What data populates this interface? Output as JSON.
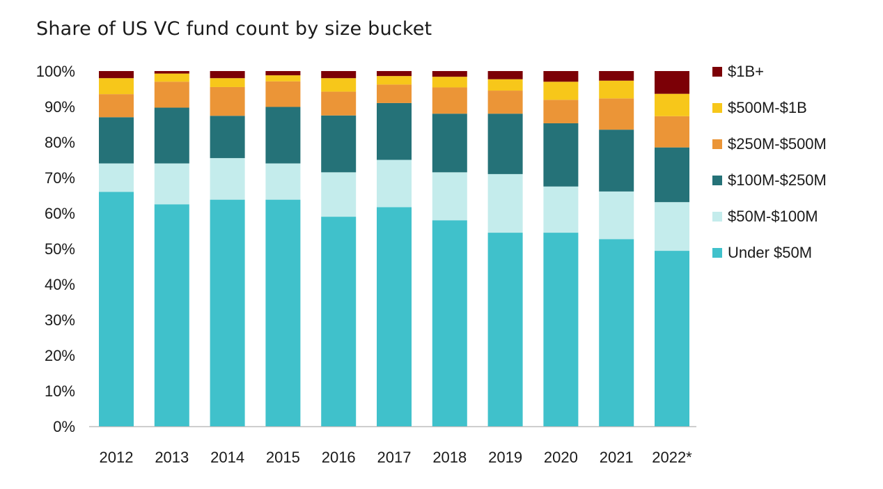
{
  "chart_data": {
    "type": "bar",
    "stacked": true,
    "title": "Share of US VC fund count by size bucket",
    "xlabel": "",
    "ylabel": "",
    "ylim": [
      0,
      100
    ],
    "y_ticks": [
      "0%",
      "10%",
      "20%",
      "30%",
      "40%",
      "50%",
      "60%",
      "70%",
      "80%",
      "90%",
      "100%"
    ],
    "grid": false,
    "legend_position": "right",
    "categories": [
      "2012",
      "2013",
      "2014",
      "2015",
      "2016",
      "2017",
      "2018",
      "2019",
      "2020",
      "2021",
      "2022*"
    ],
    "series": [
      {
        "name": "Under $50M",
        "color": "#40c1cb",
        "values": [
          66,
          62.5,
          63.8,
          63.8,
          59,
          61.7,
          58,
          54.5,
          54.5,
          52.7,
          49.4
        ]
      },
      {
        "name": "$50M-$100M",
        "color": "#c4ecec",
        "values": [
          8,
          11.5,
          11.7,
          10.2,
          12.5,
          13.3,
          13.5,
          16.5,
          13,
          13.4,
          13.7
        ]
      },
      {
        "name": "$100M-$250M",
        "color": "#257278",
        "values": [
          13,
          15.7,
          11.9,
          15.9,
          16,
          16,
          16.5,
          17,
          17.8,
          17.4,
          15.4
        ]
      },
      {
        "name": "$250M-$500M",
        "color": "#eb9537",
        "values": [
          6.5,
          7.3,
          8.1,
          7.2,
          6.7,
          5.2,
          7.4,
          6.5,
          6.6,
          8.8,
          8.8
        ]
      },
      {
        "name": "$500M-$1B",
        "color": "#f7c71a",
        "values": [
          4.5,
          2.3,
          2.5,
          1.7,
          3.8,
          2.4,
          3,
          3.2,
          5.1,
          5,
          6.3
        ]
      },
      {
        "name": "$1B+",
        "color": "#7c0006",
        "values": [
          2,
          0.7,
          2,
          1.2,
          2,
          1.4,
          1.6,
          2.3,
          3,
          2.7,
          6.4
        ]
      }
    ]
  }
}
